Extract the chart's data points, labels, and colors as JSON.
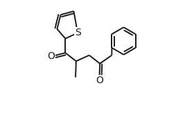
{
  "bg_color": "#ffffff",
  "line_color": "#1a1a1a",
  "line_width": 1.4,
  "font_size": 10,
  "xlim": [
    0.0,
    1.0
  ],
  "ylim": [
    0.0,
    1.0
  ]
}
